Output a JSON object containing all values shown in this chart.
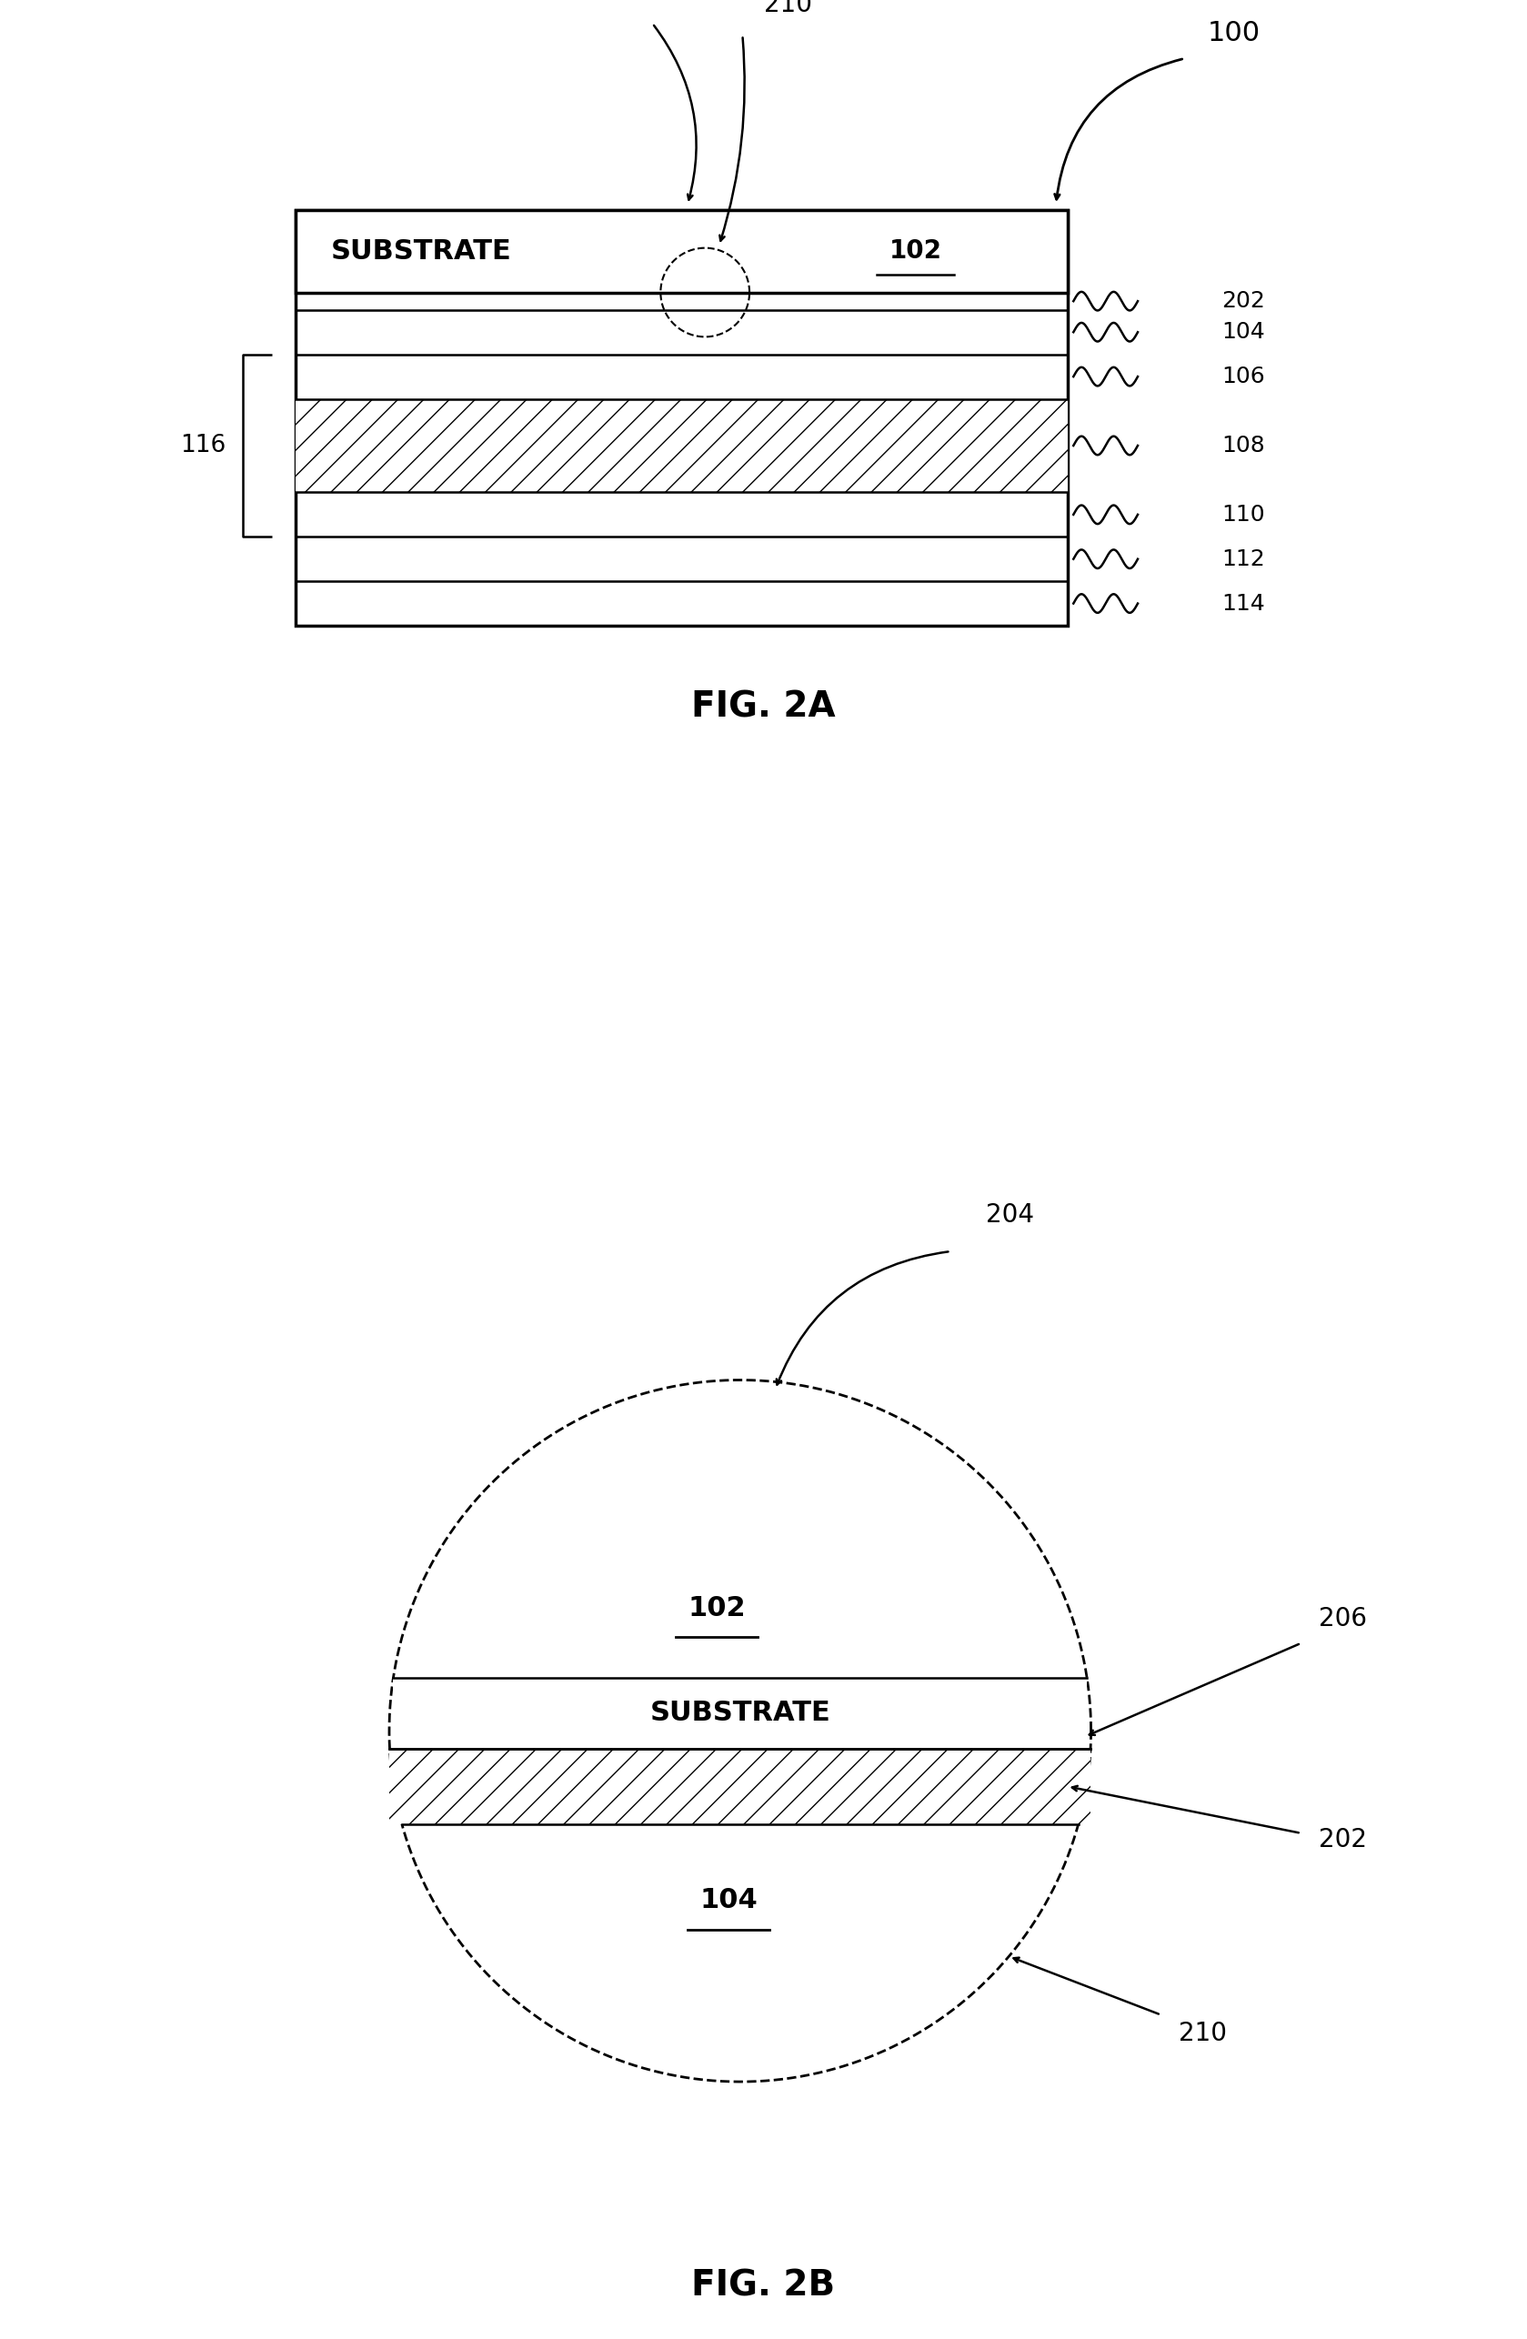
{
  "fig_width": 16.79,
  "fig_height": 25.72,
  "bg_color": "#ffffff",
  "fig2a_title": "FIG. 2A",
  "fig2b_title": "FIG. 2B",
  "label_100": "100",
  "label_102": "102",
  "label_104": "104",
  "label_106": "106",
  "label_108": "108",
  "label_110": "110",
  "label_112": "112",
  "label_114": "114",
  "label_116": "116",
  "label_202": "202",
  "label_204": "204",
  "label_206": "206",
  "label_210": "210",
  "label_substrate": "SUBSTRATE",
  "font_size_ref": 18,
  "font_size_title": 28,
  "font_size_substrate": 20,
  "lw_thick": 2.5,
  "lw_thin": 1.8,
  "lw_hatch": 1.0
}
